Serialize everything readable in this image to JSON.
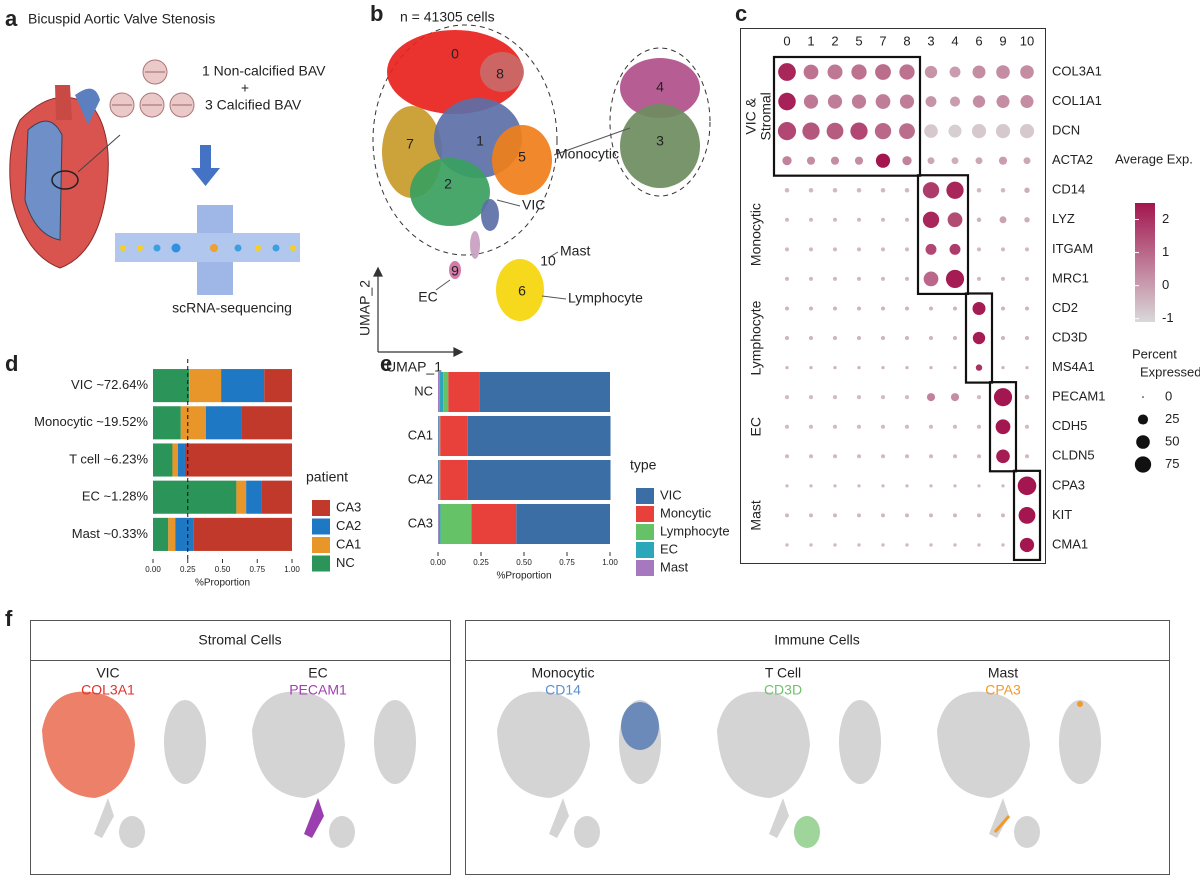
{
  "panel_labels": [
    "a",
    "b",
    "c",
    "d",
    "e",
    "f"
  ],
  "panel_a": {
    "title": "Bicuspid Aortic Valve Stenosis",
    "line1": "1 Non-calcified BAV",
    "plus": "+",
    "line2": "3 Calcified BAV",
    "method": "scRNA-sequencing"
  },
  "panel_b": {
    "count": "n = 41305 cells",
    "clusters": [
      "0",
      "1",
      "2",
      "3",
      "4",
      "5",
      "6",
      "7",
      "8",
      "9",
      "10"
    ],
    "labels": [
      "Monocytic",
      "VIC",
      "Mast",
      "EC",
      "Lymphocyte"
    ],
    "x_axis": "UMAP_1",
    "y_axis": "UMAP_2"
  },
  "chart_data": [
    {
      "type": "dot",
      "columns": [
        "0",
        "1",
        "2",
        "5",
        "7",
        "8",
        "3",
        "4",
        "6",
        "9",
        "10"
      ],
      "rows": [
        "COL3A1",
        "COL1A1",
        "DCN",
        "ACTA2",
        "CD14",
        "LYZ",
        "ITGAM",
        "MRC1",
        "CD2",
        "CD3D",
        "MS4A1",
        "PECAM1",
        "CDH5",
        "CLDN5",
        "CPA3",
        "KIT",
        "CMA1"
      ],
      "groups": [
        [
          "VIC &",
          "Stromal"
        ],
        "Monocytic",
        "Lymphocyte",
        "EC",
        "Mast"
      ],
      "pct": [
        [
          90,
          60,
          62,
          65,
          70,
          65,
          40,
          30,
          45,
          50,
          50
        ],
        [
          88,
          55,
          55,
          55,
          60,
          55,
          30,
          25,
          40,
          45,
          45
        ],
        [
          95,
          85,
          80,
          85,
          75,
          70,
          50,
          45,
          55,
          55,
          55
        ],
        [
          20,
          15,
          15,
          15,
          55,
          20,
          10,
          10,
          10,
          15,
          10
        ],
        [
          3,
          3,
          3,
          3,
          3,
          3,
          75,
          85,
          3,
          3,
          5
        ],
        [
          2,
          2,
          2,
          2,
          2,
          2,
          75,
          60,
          3,
          10,
          5
        ],
        [
          2,
          2,
          2,
          2,
          2,
          2,
          30,
          30,
          2,
          2,
          2
        ],
        [
          2,
          2,
          2,
          2,
          2,
          2,
          60,
          95,
          2,
          2,
          2
        ],
        [
          2,
          2,
          2,
          2,
          2,
          2,
          2,
          2,
          45,
          2,
          2
        ],
        [
          2,
          2,
          2,
          2,
          2,
          2,
          2,
          2,
          40,
          2,
          2
        ],
        [
          1,
          1,
          1,
          1,
          1,
          1,
          1,
          1,
          8,
          1,
          1
        ],
        [
          2,
          2,
          2,
          2,
          2,
          2,
          15,
          15,
          2,
          95,
          3
        ],
        [
          2,
          2,
          2,
          2,
          2,
          2,
          2,
          2,
          2,
          60,
          2
        ],
        [
          2,
          2,
          2,
          2,
          2,
          2,
          2,
          2,
          2,
          50,
          2
        ],
        [
          1,
          1,
          1,
          1,
          1,
          1,
          1,
          1,
          1,
          1,
          100
        ],
        [
          2,
          2,
          2,
          2,
          2,
          2,
          2,
          2,
          2,
          2,
          80
        ],
        [
          1,
          1,
          1,
          1,
          1,
          1,
          1,
          1,
          1,
          1,
          55
        ]
      ],
      "exp": [
        [
          2.2,
          0.8,
          0.7,
          0.8,
          0.9,
          0.8,
          0.2,
          0.0,
          0.3,
          0.3,
          0.3
        ],
        [
          2.3,
          0.7,
          0.6,
          0.6,
          0.6,
          0.6,
          0.2,
          0.0,
          0.3,
          0.3,
          0.3
        ],
        [
          1.6,
          1.3,
          1.2,
          1.6,
          1.0,
          0.9,
          -0.8,
          -0.9,
          -0.8,
          -0.8,
          -0.8
        ],
        [
          0.5,
          0.3,
          0.3,
          0.3,
          2.5,
          0.5,
          -0.2,
          -0.3,
          -0.2,
          0.0,
          -0.2
        ],
        [
          -0.5,
          -0.5,
          -0.5,
          -0.5,
          -0.5,
          -0.5,
          1.8,
          2.2,
          -0.5,
          -0.5,
          -0.3
        ],
        [
          -0.5,
          -0.5,
          -0.5,
          -0.5,
          -0.5,
          -0.5,
          2.2,
          1.5,
          -0.4,
          -0.1,
          -0.3
        ],
        [
          -0.5,
          -0.5,
          -0.5,
          -0.5,
          -0.5,
          -0.5,
          1.6,
          1.8,
          -0.5,
          -0.5,
          -0.5
        ],
        [
          -0.5,
          -0.5,
          -0.5,
          -0.5,
          -0.5,
          -0.5,
          1.0,
          2.4,
          -0.5,
          -0.5,
          -0.5
        ],
        [
          -0.4,
          -0.4,
          -0.4,
          -0.4,
          -0.4,
          -0.4,
          -0.4,
          -0.4,
          2.4,
          -0.4,
          -0.4
        ],
        [
          -0.4,
          -0.4,
          -0.4,
          -0.4,
          -0.4,
          -0.4,
          -0.4,
          -0.4,
          2.4,
          -0.4,
          -0.4
        ],
        [
          -0.4,
          -0.4,
          -0.4,
          -0.4,
          -0.4,
          -0.4,
          -0.4,
          -0.4,
          2.0,
          -0.4,
          -0.4
        ],
        [
          -0.5,
          -0.5,
          -0.5,
          -0.5,
          -0.5,
          -0.5,
          0.5,
          0.3,
          -0.5,
          2.5,
          -0.4
        ],
        [
          -0.5,
          -0.5,
          -0.5,
          -0.5,
          -0.5,
          -0.5,
          -0.5,
          -0.5,
          -0.5,
          2.5,
          -0.5
        ],
        [
          -0.5,
          -0.5,
          -0.5,
          -0.5,
          -0.5,
          -0.5,
          -0.5,
          -0.5,
          -0.5,
          2.4,
          -0.5
        ],
        [
          -0.5,
          -0.5,
          -0.5,
          -0.5,
          -0.5,
          -0.5,
          -0.5,
          -0.5,
          -0.5,
          -0.5,
          2.5
        ],
        [
          -0.5,
          -0.5,
          -0.5,
          -0.5,
          -0.5,
          -0.5,
          -0.5,
          -0.5,
          -0.5,
          -0.5,
          2.5
        ],
        [
          -0.5,
          -0.5,
          -0.5,
          -0.5,
          -0.5,
          -0.5,
          -0.5,
          -0.5,
          -0.5,
          -0.5,
          2.5
        ]
      ],
      "colorlim": [
        -1.1,
        2.5
      ],
      "colorticks": [
        2,
        1,
        0,
        -1
      ],
      "colors": [
        "#d9d9d9",
        "#a3164f"
      ],
      "color_label": "Average Exp.",
      "size_label": [
        "Percent",
        "Expressed"
      ],
      "size_ticks": [
        0,
        25,
        50,
        75
      ]
    },
    {
      "type": "stacked_barh",
      "categories": [
        "VIC ~72.64%",
        "Monocytic ~19.52%",
        "T cell ~6.23%",
        "EC ~1.28%",
        "Mast ~0.33%"
      ],
      "series": [
        {
          "name": "NC",
          "color": "#2a9459",
          "values": [
            0.26,
            0.2,
            0.14,
            0.6,
            0.11
          ]
        },
        {
          "name": "CA1",
          "color": "#e8962a",
          "values": [
            0.23,
            0.18,
            0.04,
            0.07,
            0.05
          ]
        },
        {
          "name": "CA2",
          "color": "#1f78c4",
          "values": [
            0.31,
            0.26,
            0.05,
            0.11,
            0.13
          ]
        },
        {
          "name": "CA3",
          "color": "#c0392b",
          "values": [
            0.2,
            0.36,
            0.77,
            0.22,
            0.71
          ]
        }
      ],
      "xlim": [
        0,
        1
      ],
      "xticks": [
        {
          "value": 0,
          "label": "0.00"
        },
        {
          "value": 0.25,
          "label": "0.25"
        },
        {
          "value": 0.5,
          "label": "0.50"
        },
        {
          "value": 0.75,
          "label": "0.75"
        },
        {
          "value": 1,
          "label": "1.00"
        }
      ],
      "xlabel": "%Proportion",
      "legend_title": "patient",
      "legend_reverse": true,
      "vline": 0.25
    },
    {
      "type": "stacked_barh",
      "categories": [
        "NC",
        "CA1",
        "CA2",
        "CA3"
      ],
      "series": [
        {
          "name": "VIC",
          "color": "#3a6ea5",
          "values": [
            0.76,
            0.83,
            0.83,
            0.545
          ]
        },
        {
          "name": "Moncytic",
          "color": "#e8403a",
          "values": [
            0.18,
            0.16,
            0.16,
            0.26
          ]
        },
        {
          "name": "Lymphocyte",
          "color": "#66c266",
          "values": [
            0.03,
            0.005,
            0.005,
            0.18
          ]
        },
        {
          "name": "EC",
          "color": "#2aa7b8",
          "values": [
            0.02,
            0.005,
            0.005,
            0.01
          ]
        },
        {
          "name": "Mast",
          "color": "#a678c0",
          "values": [
            0.01,
            0.003,
            0.003,
            0.005
          ]
        }
      ],
      "xlim": [
        0,
        1
      ],
      "xticks": [
        {
          "value": 0,
          "label": "0.00"
        },
        {
          "value": 0.25,
          "label": "0.25"
        },
        {
          "value": 0.5,
          "label": "0.50"
        },
        {
          "value": 0.75,
          "label": "0.75"
        },
        {
          "value": 1,
          "label": "1.00"
        }
      ],
      "xlabel": "%Proportion",
      "legend_title": "type",
      "stack_reverse": true
    }
  ],
  "panel_f": {
    "groups": [
      {
        "title": "Stromal Cells",
        "panels": [
          {
            "cell": "VIC",
            "gene": "COL3A1"
          },
          {
            "cell": "EC",
            "gene": "PECAM1"
          }
        ]
      },
      {
        "title": "Immune Cells",
        "panels": [
          {
            "cell": "Monocytic",
            "gene": "CD14"
          },
          {
            "cell": "T Cell",
            "gene": "CD3D"
          },
          {
            "cell": "Mast",
            "gene": "CPA3"
          }
        ]
      }
    ]
  }
}
